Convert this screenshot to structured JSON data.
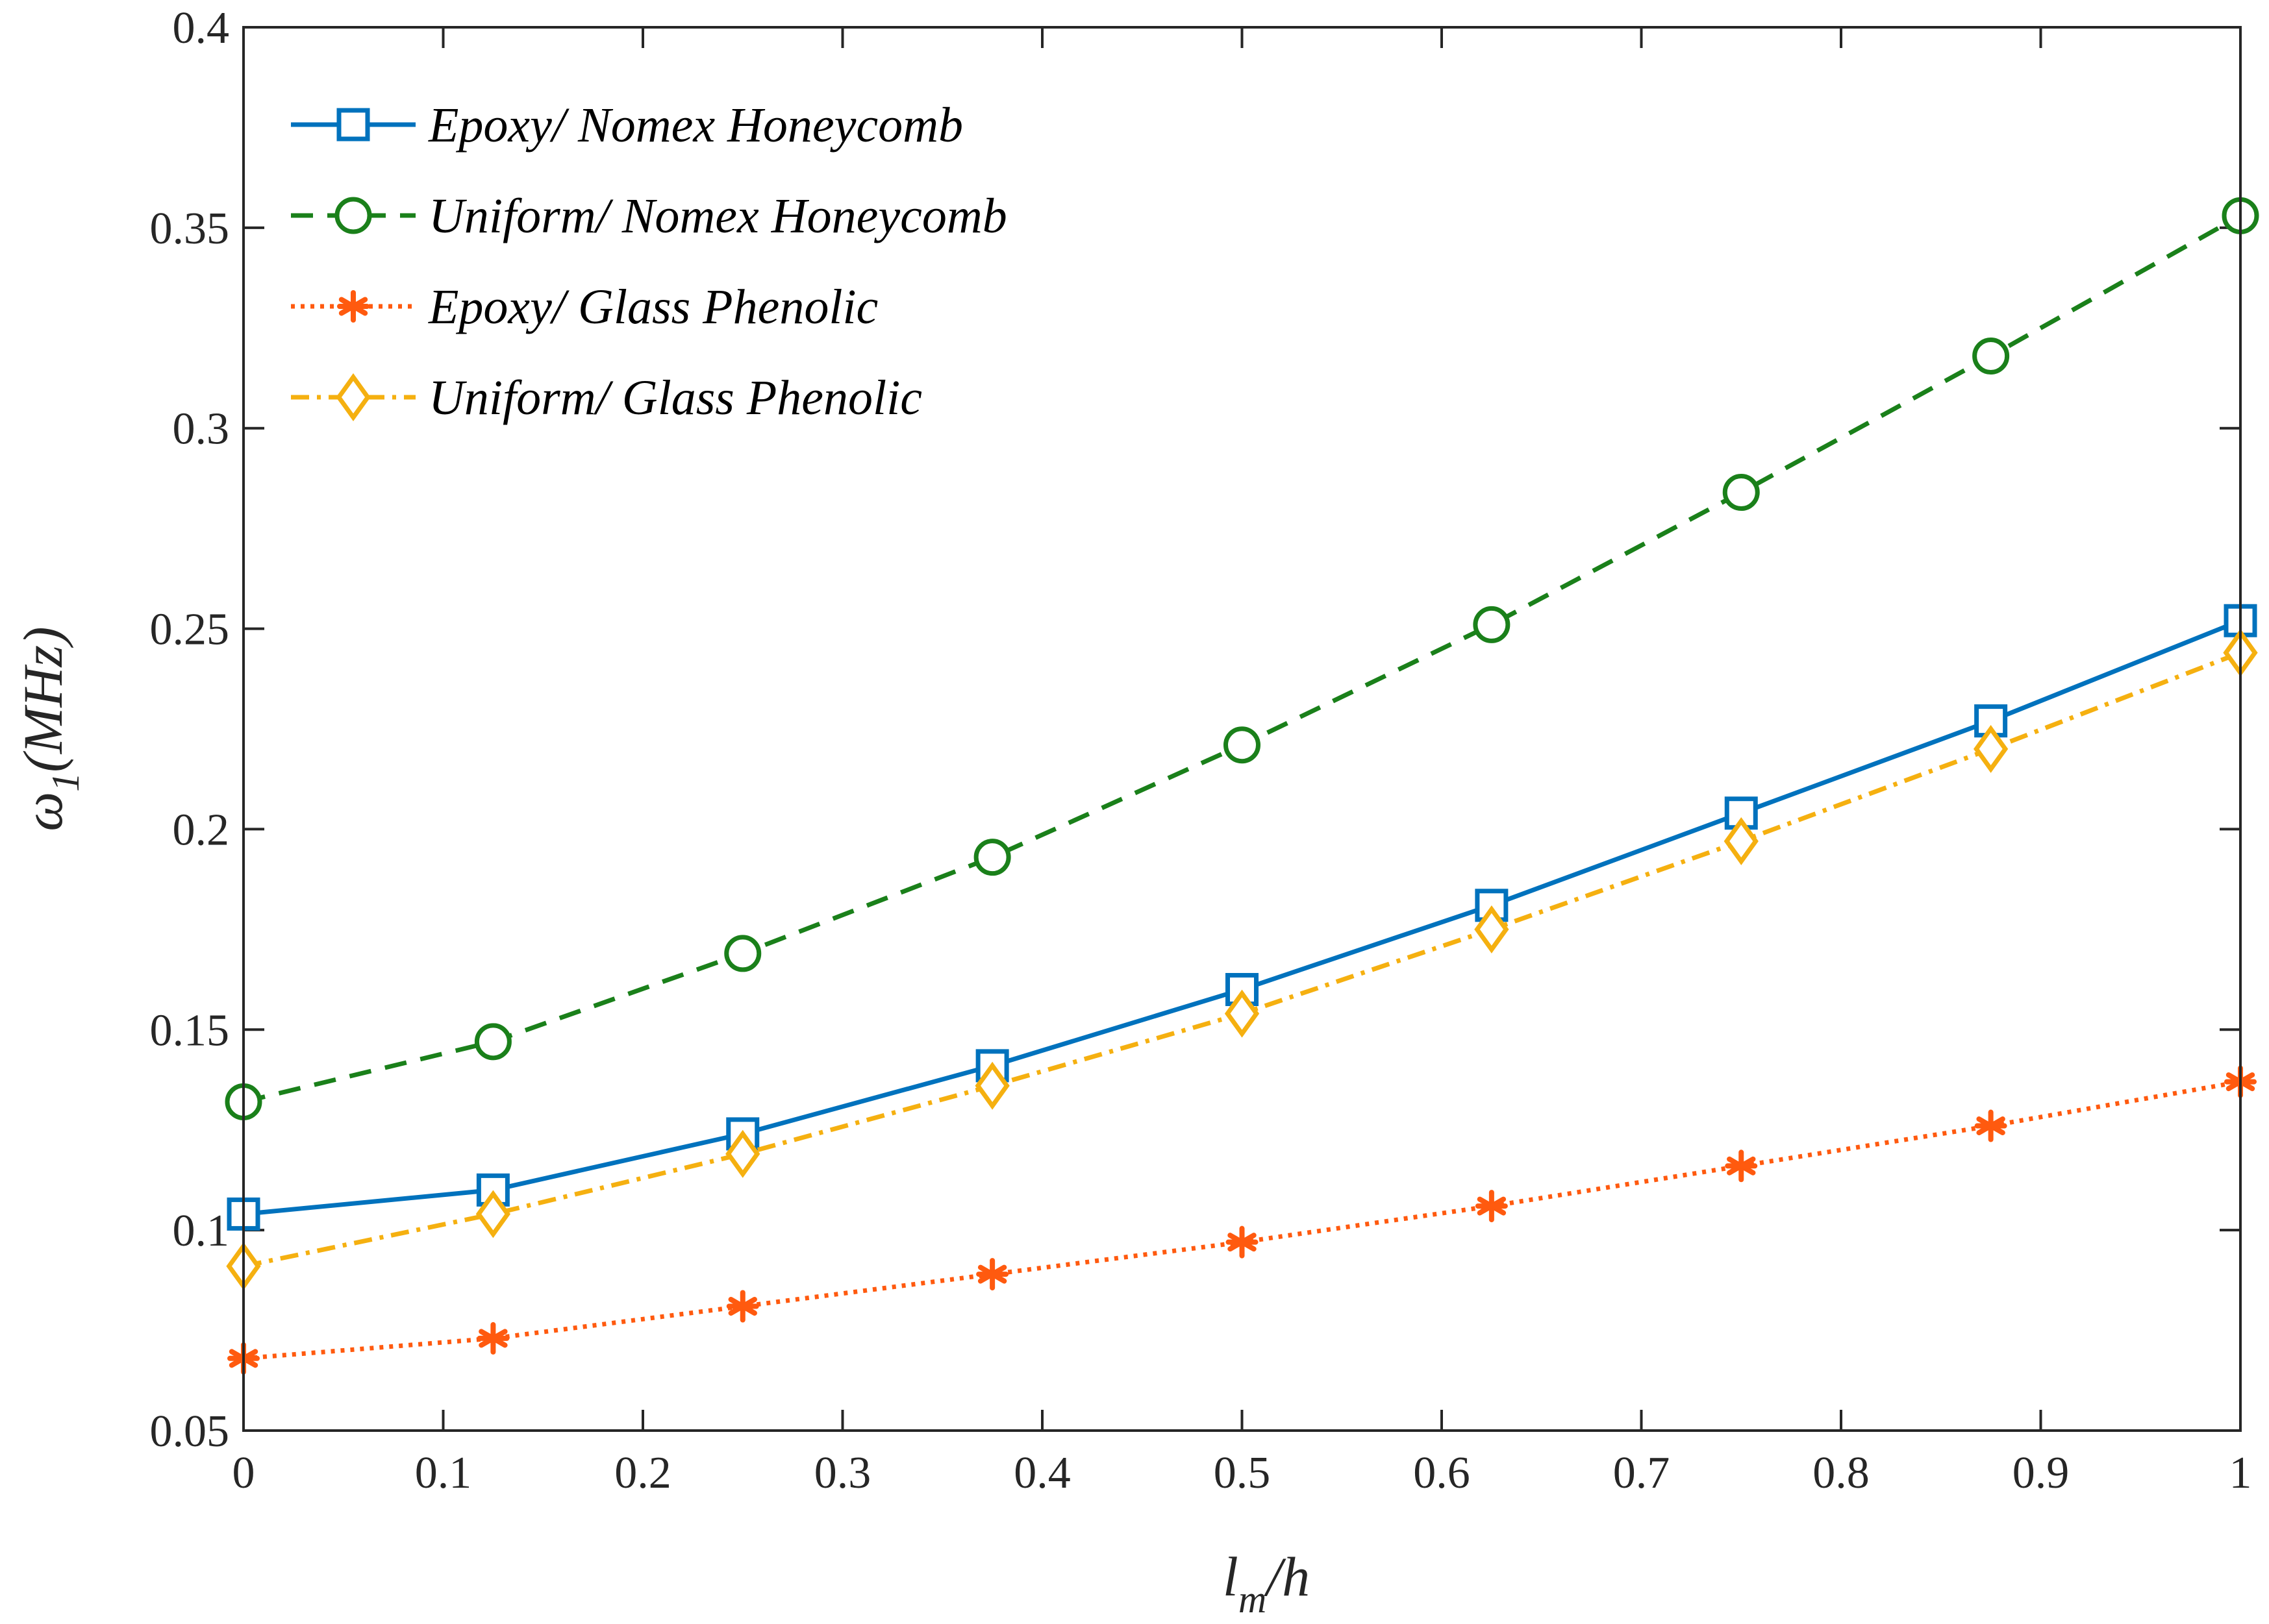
{
  "chart_data": {
    "type": "line",
    "x": [
      0,
      0.125,
      0.25,
      0.375,
      0.5,
      0.625,
      0.75,
      0.875,
      1
    ],
    "series": [
      {
        "name": "Epoxy/ Nomex Honeycomb",
        "color": "#0072BD",
        "line_style": "solid",
        "marker": "square",
        "values": [
          0.104,
          0.11,
          0.124,
          0.141,
          0.16,
          0.181,
          0.204,
          0.227,
          0.252
        ]
      },
      {
        "name": "Uniform/ Nomex Honeycomb",
        "color": "#1A801A",
        "line_style": "dashed",
        "marker": "circle",
        "values": [
          0.132,
          0.147,
          0.169,
          0.193,
          0.221,
          0.251,
          0.284,
          0.318,
          0.353
        ]
      },
      {
        "name": "Epoxy/ Glass Phenolic",
        "color": "#FF5A0F",
        "line_style": "dotted",
        "marker": "asterisk",
        "values": [
          0.068,
          0.073,
          0.081,
          0.089,
          0.097,
          0.106,
          0.116,
          0.126,
          0.137
        ]
      },
      {
        "name": "Uniform/ Glass Phenolic",
        "color": "#F5B010",
        "line_style": "dash-dot",
        "marker": "diamond",
        "values": [
          0.091,
          0.104,
          0.119,
          0.136,
          0.154,
          0.175,
          0.197,
          0.22,
          0.244
        ]
      }
    ],
    "xlim": [
      0,
      1
    ],
    "ylim": [
      0.05,
      0.4
    ],
    "xticks": [
      0,
      0.1,
      0.2,
      0.3,
      0.4,
      0.5,
      0.6,
      0.7,
      0.8,
      0.9,
      1
    ],
    "xtick_labels": [
      "0",
      "0.1",
      "0.2",
      "0.3",
      "0.4",
      "0.5",
      "0.6",
      "0.7",
      "0.8",
      "0.9",
      "1"
    ],
    "yticks": [
      0.05,
      0.1,
      0.15,
      0.2,
      0.25,
      0.3,
      0.35,
      0.4
    ],
    "ytick_labels": [
      "0.05",
      "0.1",
      "0.15",
      "0.2",
      "0.25",
      "0.3",
      "0.35",
      "0.4"
    ],
    "xlabel": {
      "main": "l",
      "sub": "m",
      "rest": "/h"
    },
    "ylabel": {
      "main": "ω",
      "sub": "1",
      "rest": "(MHz)"
    },
    "legend_position": "top-left",
    "grid": false
  }
}
